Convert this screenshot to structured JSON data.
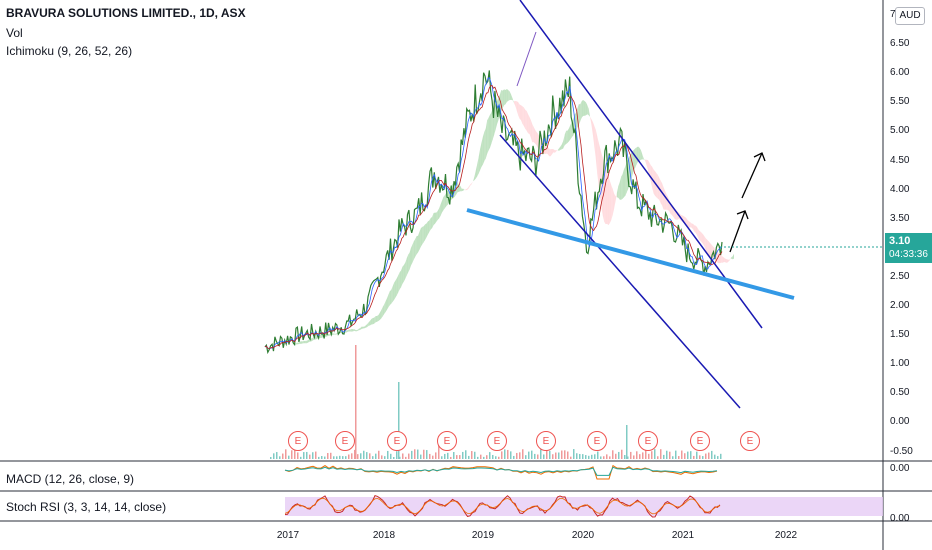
{
  "symbol_title": "BRAVURA SOLUTIONS LIMITED., 1D, ASX",
  "indicators": {
    "volume": "Vol",
    "ichimoku": "Ichimoku (9, 26, 52, 26)",
    "macd": "MACD (12, 26, close, 9)",
    "stoch_rsi": "Stoch RSI (3, 3, 14, 14, close)"
  },
  "currency": "AUD",
  "last_price": {
    "value": "3.10",
    "countdown": "04:33:36",
    "color": "#26a69a"
  },
  "price_axis_labels": [
    "7",
    "6.50",
    "6.00",
    "5.50",
    "5.00",
    "4.50",
    "4.00",
    "3.50",
    "3.00",
    "2.50",
    "2.00",
    "1.50",
    "1.00",
    "0.50",
    "0.00",
    "-0.50"
  ],
  "macd_axis_label": "0.00",
  "stoch_axis_label": "0.00",
  "time_axis_labels": [
    "2017",
    "2018",
    "2019",
    "2020",
    "2021",
    "2022"
  ],
  "earnings_marker": "E",
  "colors": {
    "price_line": "#2e7d32",
    "channel": "#1a1ab3",
    "support": "#3399e6",
    "kumo_up": "#a5d6a7",
    "kumo_down": "#ffcdd2",
    "earnings": "#ef5350",
    "stoch_band": "#e6ccf5"
  },
  "chart_data": {
    "type": "line",
    "x": [
      "2016-11",
      "2017-01",
      "2017-04",
      "2017-07",
      "2017-10",
      "2018-01",
      "2018-03",
      "2018-05",
      "2018-07",
      "2018-09",
      "2018-11",
      "2019-01",
      "2019-03",
      "2019-05",
      "2019-07",
      "2019-09",
      "2019-11",
      "2020-01",
      "2020-02",
      "2020-03",
      "2020-04",
      "2020-06",
      "2020-08",
      "2020-10",
      "2020-12",
      "2021-02",
      "2021-04",
      "2021-05"
    ],
    "series": [
      {
        "values": [
          1.3,
          1.4,
          1.5,
          1.55,
          1.6,
          1.7,
          2.0,
          2.7,
          3.3,
          3.6,
          4.3,
          4.0,
          5.2,
          6.0,
          5.0,
          4.6,
          4.5,
          5.3,
          5.7,
          3.0,
          4.5,
          4.8,
          3.8,
          3.5,
          3.4,
          2.9,
          2.7,
          3.1
        ]
      }
    ],
    "ylim": [
      -0.5,
      7
    ],
    "grid": false
  }
}
